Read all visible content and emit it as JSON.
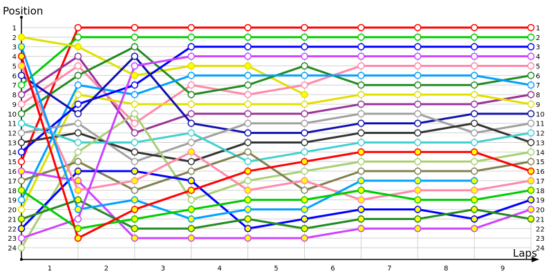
{
  "chart_data": {
    "type": "line",
    "title": "",
    "ylabel": "Position",
    "xlabel": "Laps",
    "x": [
      0,
      1,
      2,
      3,
      4,
      5,
      6,
      7,
      8,
      9
    ],
    "x_tick_labels": [
      "1",
      "2",
      "3",
      "4",
      "5",
      "6",
      "7",
      "8",
      "9"
    ],
    "y_tick_labels": [
      "1",
      "2",
      "3",
      "4",
      "5",
      "6",
      "7",
      "8",
      "9",
      "10",
      "11",
      "12",
      "13",
      "14",
      "15",
      "16",
      "17",
      "18",
      "19",
      "20",
      "21",
      "22",
      "23",
      "24"
    ],
    "ylim": [
      1,
      24
    ],
    "y_inverted": true,
    "grid": true,
    "legend": "none",
    "series": [
      {
        "name": "red",
        "color": "#ff0000",
        "fill": "#ffffff",
        "values": [
          15,
          1,
          1,
          1,
          1,
          1,
          1,
          1,
          1,
          1
        ]
      },
      {
        "name": "green",
        "color": "#00cc00",
        "fill": "#ffffff",
        "values": [
          7,
          2,
          2,
          2,
          2,
          2,
          2,
          2,
          2,
          2
        ]
      },
      {
        "name": "yellow-filled",
        "color": "#e0e000",
        "fill": "#ffff00",
        "values": [
          2,
          3,
          6,
          5,
          5,
          8
        ]
      },
      {
        "name": "purple",
        "color": "#993399",
        "fill": "#ffffff",
        "values": [
          8,
          4,
          12,
          10,
          10,
          10,
          9,
          9,
          9,
          8
        ]
      },
      {
        "name": "pink",
        "color": "#ff88aa",
        "fill": "#ffffff",
        "values": [
          9,
          5,
          11,
          7,
          8,
          7,
          5,
          5,
          5,
          5
        ]
      },
      {
        "name": "dark-green",
        "color": "#228b22",
        "fill": "#ffffff",
        "values": [
          10,
          6,
          3,
          8,
          7,
          5,
          7,
          7,
          7,
          6
        ]
      },
      {
        "name": "light-blue",
        "color": "#00a0ff",
        "fill": "#ffffff",
        "values": [
          19,
          7,
          8,
          6,
          6,
          6,
          6,
          6,
          6,
          7
        ]
      },
      {
        "name": "yellow",
        "color": "#e0e000",
        "fill": "#ffffff",
        "values": [
          20,
          8,
          9,
          9,
          9,
          9,
          8,
          8,
          8,
          9
        ]
      },
      {
        "name": "blue",
        "color": "#0000ff",
        "fill": "#ffffff",
        "values": [
          14,
          9,
          7,
          3,
          3,
          3,
          3,
          3,
          3,
          3
        ]
      },
      {
        "name": "dark-blue",
        "color": "#1010b0",
        "fill": "#ffffff",
        "values": [
          6,
          10,
          4,
          11,
          12,
          12,
          11,
          11,
          10,
          10
        ]
      },
      {
        "name": "gray",
        "color": "#a0a0a0",
        "fill": "#ffffff",
        "values": [
          12,
          11,
          15,
          13,
          11,
          11,
          10,
          10,
          12,
          11
        ]
      },
      {
        "name": "black",
        "color": "#333333",
        "fill": "#ffffff",
        "values": [
          13,
          12,
          14,
          15,
          13,
          13,
          12,
          12,
          11,
          13
        ]
      },
      {
        "name": "cyan",
        "color": "#40d0d0",
        "fill": "#ffffff",
        "values": [
          11,
          13,
          13,
          12,
          15,
          14,
          13,
          13,
          13,
          12
        ]
      },
      {
        "name": "light-green",
        "color": "#a8d070",
        "fill": "#ffffff",
        "values": [
          24,
          14,
          10,
          19,
          17,
          16,
          15,
          15,
          15,
          14
        ]
      },
      {
        "name": "olive",
        "color": "#808050",
        "fill": "#ffffff",
        "values": [
          17,
          15,
          18,
          16,
          14,
          18,
          16,
          16,
          16,
          15
        ]
      },
      {
        "name": "blue-filled",
        "color": "#0000ff",
        "fill": "#ffff00",
        "values": [
          22,
          16,
          16,
          17,
          22,
          21,
          20,
          20,
          21,
          19
        ]
      },
      {
        "name": "magenta-filled",
        "color": "#cc44ff",
        "fill": "#ffff00",
        "values": [
          16,
          17,
          23,
          23,
          23,
          23,
          22,
          22,
          22,
          20
        ]
      },
      {
        "name": "pink-filled",
        "color": "#ff88aa",
        "fill": "#ffff00",
        "values": [
          5,
          18,
          17,
          14,
          18,
          17,
          19,
          18,
          18,
          17
        ]
      },
      {
        "name": "dark-green-filled",
        "color": "#228b22",
        "fill": "#ffff00",
        "values": [
          21,
          19,
          22,
          22,
          21,
          22,
          21,
          21,
          20,
          21
        ]
      },
      {
        "name": "light-blue-filled",
        "color": "#00a0ff",
        "fill": "#ffff00",
        "values": [
          3,
          20,
          19,
          21,
          20,
          20,
          17,
          17,
          17
        ]
      },
      {
        "name": "magenta",
        "color": "#cc44ff",
        "fill": "#ffffff",
        "values": [
          23,
          21,
          5,
          4,
          4,
          4,
          4,
          4,
          4,
          4
        ]
      },
      {
        "name": "green-filled",
        "color": "#00cc00",
        "fill": "#ffff00",
        "values": [
          18,
          22,
          21,
          20,
          19,
          19,
          18,
          19,
          19,
          18
        ]
      },
      {
        "name": "red-filled",
        "color": "#ff0000",
        "fill": "#ffff00",
        "values": [
          4,
          23,
          20,
          18,
          16,
          15,
          14,
          14,
          14,
          16
        ]
      }
    ]
  }
}
